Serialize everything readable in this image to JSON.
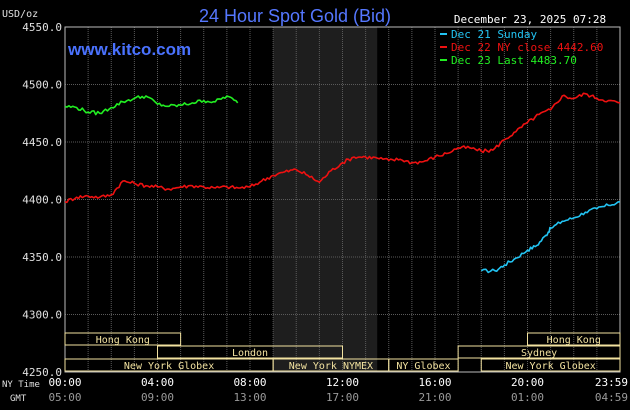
{
  "chart_data": {
    "type": "line",
    "title": "24 Hour Spot Gold (Bid)",
    "watermark": "www.kitco.com",
    "date_stamp": "December 23, 2025 07:28",
    "y_unit": "USD/oz",
    "ylim": [
      4250,
      4550
    ],
    "y_ticks": [
      "4550.0",
      "4500.0",
      "4450.0",
      "4400.0",
      "4350.0",
      "4300.0",
      "4250.0"
    ],
    "x_range_hours": [
      0,
      24
    ],
    "x_ticks_ny": [
      "00:00",
      "04:00",
      "08:00",
      "12:00",
      "16:00",
      "20:00",
      "23:59"
    ],
    "x_ticks_gmt": [
      "05:00",
      "09:00",
      "13:00",
      "17:00",
      "21:00",
      "01:00",
      "04:59"
    ],
    "x_row_labels": [
      "NY Time",
      "GMT"
    ],
    "shaded_session_hours": [
      9,
      13.5
    ],
    "grid": true,
    "legend_position": "top-right",
    "colors": {
      "background": "#000000",
      "plot_border": "#bbbbbb",
      "grid": "#5a5a5a",
      "shade": "#1e1e1e",
      "title": "#5577ff",
      "watermark": "#4a72ff",
      "text": "#ffffff",
      "axis_text": "#e0e0e0",
      "session_box": "#f2e2a0",
      "session_text": "#f2e2a0"
    },
    "series": [
      {
        "name": "Dec 21 Sunday",
        "color": "#22c3f2",
        "x": [
          18,
          18.6,
          19,
          19.5,
          20,
          20.4,
          20.8,
          21,
          21.5,
          22,
          22.5,
          23,
          23.5,
          24
        ],
        "values": [
          4338,
          4338,
          4343,
          4349,
          4356,
          4360,
          4369,
          4375,
          4381,
          4384,
          4389,
          4392,
          4395,
          4398
        ]
      },
      {
        "name": "Dec 22 NY close 4442.60",
        "color": "#ee1111",
        "x": [
          0,
          0.5,
          1,
          1.5,
          2,
          2.5,
          3,
          3.5,
          4,
          4.5,
          5,
          5.5,
          6,
          6.5,
          7,
          7.5,
          8,
          8.5,
          9,
          9.5,
          10,
          10.5,
          11,
          11.5,
          12,
          12.5,
          13,
          13.5,
          14,
          14.5,
          15,
          15.5,
          16,
          16.5,
          17,
          17.5,
          18,
          18.5,
          19,
          19.5,
          20,
          20.5,
          21,
          21.5,
          22,
          22.5,
          23,
          23.5,
          24
        ],
        "values": [
          4398,
          4402,
          4403,
          4402,
          4404,
          4416,
          4414,
          4412,
          4411,
          4409,
          4411,
          4412,
          4411,
          4410,
          4411,
          4410,
          4411,
          4416,
          4421,
          4424,
          4426,
          4421,
          4415,
          4425,
          4432,
          4437,
          4437,
          4436,
          4434,
          4435,
          4432,
          4433,
          4437,
          4440,
          4445,
          4445,
          4442,
          4443,
          4452,
          4459,
          4467,
          4474,
          4478,
          4490,
          4488,
          4492,
          4488,
          4486,
          4484
        ]
      },
      {
        "name": "Dec 23 Last 4483.70",
        "color": "#22ee22",
        "x": [
          0,
          0.5,
          1,
          1.5,
          2,
          2.5,
          3,
          3.5,
          4,
          4.5,
          5,
          5.5,
          6,
          6.5,
          7,
          7.47
        ],
        "values": [
          4481,
          4480,
          4476,
          4475,
          4480,
          4485,
          4488,
          4490,
          4483,
          4481,
          4482,
          4484,
          4486,
          4485,
          4490,
          4484
        ]
      }
    ],
    "sessions": [
      {
        "name": "Hong Kong",
        "row": 1,
        "start": 0,
        "end": 5
      },
      {
        "name": "London",
        "row": 2,
        "start": 4,
        "end": 12
      },
      {
        "name": "New York Globex",
        "row": 3,
        "start": 0,
        "end": 9
      },
      {
        "name": "New York NYMEX",
        "row": 3,
        "start": 9,
        "end": 14
      },
      {
        "name": "NY Globex",
        "row": 3,
        "start": 14,
        "end": 17
      },
      {
        "name": "Hong Kong",
        "row": 1,
        "start": 20,
        "end": 24
      },
      {
        "name": "Sydney",
        "row": 2,
        "start": 17,
        "end": 24
      },
      {
        "name": "New York Globex",
        "row": 3,
        "start": 18,
        "end": 24
      }
    ]
  }
}
